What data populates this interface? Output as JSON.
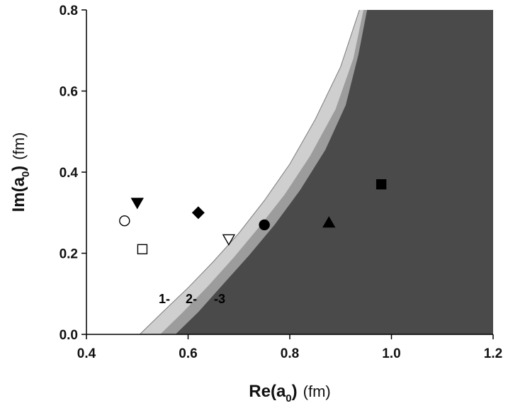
{
  "chart_data": {
    "type": "scatter",
    "xlabel": "Re(a",
    "xlabel_sub": "0",
    "xlabel_tail": ")",
    "xlabel_unit": "(fm)",
    "ylabel": "Im(a",
    "ylabel_sub": "0",
    "ylabel_tail": ")",
    "ylabel_unit": "(fm)",
    "xlim": [
      0.4,
      1.2
    ],
    "ylim": [
      0.0,
      0.8
    ],
    "xticks": [
      0.4,
      0.6,
      0.8,
      1.0,
      1.2
    ],
    "yticks": [
      0.0,
      0.2,
      0.4,
      0.6,
      0.8
    ],
    "xtick_labels": [
      "0.4",
      "0.6",
      "0.8",
      "1.0",
      "1.2"
    ],
    "ytick_labels": [
      "0.0",
      "0.2",
      "0.4",
      "0.6",
      "0.8"
    ],
    "region_labels": [
      "1-",
      "2-",
      "-3"
    ],
    "region_colors": [
      "#cfcfcf",
      "#9c9c9c",
      "#4a4a4a"
    ],
    "boundaries": [
      {
        "x": [
          0.505,
          0.55,
          0.6,
          0.65,
          0.7,
          0.75,
          0.8,
          0.85,
          0.9,
          0.937
        ],
        "y": [
          0.0,
          0.055,
          0.115,
          0.18,
          0.25,
          0.33,
          0.42,
          0.53,
          0.66,
          0.8
        ]
      },
      {
        "x": [
          0.545,
          0.59,
          0.64,
          0.69,
          0.74,
          0.79,
          0.84,
          0.89,
          0.925,
          0.945
        ],
        "y": [
          0.0,
          0.055,
          0.12,
          0.19,
          0.265,
          0.345,
          0.44,
          0.555,
          0.68,
          0.8
        ]
      },
      {
        "x": [
          0.575,
          0.62,
          0.67,
          0.72,
          0.77,
          0.82,
          0.87,
          0.91,
          0.935,
          0.952
        ],
        "y": [
          0.0,
          0.055,
          0.125,
          0.195,
          0.27,
          0.355,
          0.455,
          0.565,
          0.69,
          0.8
        ]
      }
    ],
    "points": [
      {
        "x": 0.475,
        "y": 0.28,
        "marker": "circle",
        "filled": false
      },
      {
        "x": 0.51,
        "y": 0.21,
        "marker": "square",
        "filled": false
      },
      {
        "x": 0.5,
        "y": 0.325,
        "marker": "triangle-down",
        "filled": true
      },
      {
        "x": 0.62,
        "y": 0.3,
        "marker": "diamond",
        "filled": true
      },
      {
        "x": 0.68,
        "y": 0.235,
        "marker": "triangle-down",
        "filled": false
      },
      {
        "x": 0.75,
        "y": 0.27,
        "marker": "circle",
        "filled": true
      },
      {
        "x": 0.877,
        "y": 0.275,
        "marker": "triangle-up",
        "filled": true
      },
      {
        "x": 0.98,
        "y": 0.37,
        "marker": "square",
        "filled": true
      }
    ]
  }
}
